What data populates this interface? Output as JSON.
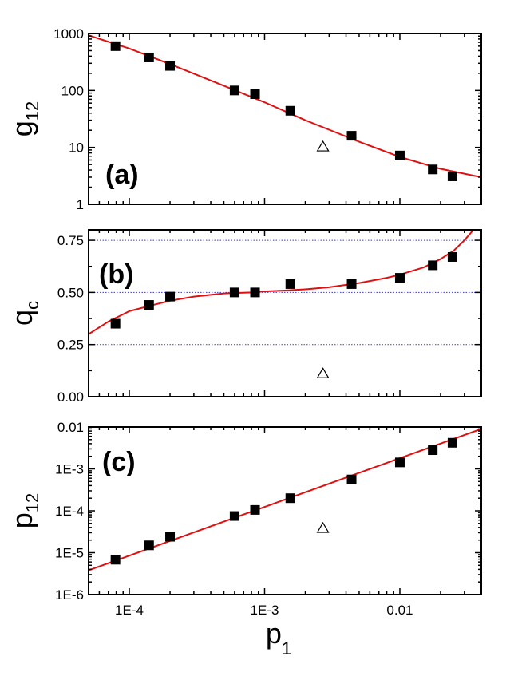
{
  "colors": {
    "fit": "#e01010",
    "reference": "#3a3acc",
    "marker": "#000000"
  },
  "chart_data": [
    {
      "type": "scatter",
      "panel_label": "(a)",
      "ylabel_main": "g",
      "ylabel_sub": "12",
      "xscale": "log",
      "yscale": "log",
      "xlim": [
        5e-05,
        0.04
      ],
      "ylim": [
        1,
        1000
      ],
      "x_ticks": [
        0.0001,
        0.001,
        0.01
      ],
      "y_ticks": [
        1,
        10,
        100,
        1000
      ],
      "y_tick_labels": [
        "1",
        "10",
        "100",
        "1000"
      ],
      "series": [
        {
          "marker": "filled-square",
          "x": [
            7.9e-05,
            0.00014,
            0.0002,
            0.0006,
            0.00085,
            0.00155,
            0.0044,
            0.01,
            0.0175,
            0.0245
          ],
          "y": [
            600,
            380,
            270,
            100,
            86,
            44,
            16,
            7.2,
            4.1,
            3.1
          ]
        },
        {
          "marker": "open-triangle",
          "x": [
            0.0027
          ],
          "y": [
            10.2
          ]
        }
      ],
      "fit": {
        "x": [
          5e-05,
          0.0001,
          0.0002,
          0.0005,
          0.001,
          0.002,
          0.005,
          0.01,
          0.02,
          0.04
        ],
        "y": [
          930,
          545,
          290,
          121,
          62,
          30,
          12.6,
          6.8,
          4.2,
          3.0
        ]
      }
    },
    {
      "type": "scatter",
      "panel_label": "(b)",
      "ylabel_main": "q",
      "ylabel_sub": "c",
      "xscale": "log",
      "yscale": "linear",
      "xlim": [
        5e-05,
        0.04
      ],
      "ylim": [
        0,
        0.8
      ],
      "x_ticks": [
        0.0001,
        0.001,
        0.01
      ],
      "y_ticks": [
        0,
        0.25,
        0.5,
        0.75
      ],
      "y_tick_labels": [
        "0.00",
        "0.25",
        "0.50",
        "0.75"
      ],
      "reference_lines": [
        0.25,
        0.5,
        0.75
      ],
      "series": [
        {
          "marker": "filled-square",
          "x": [
            7.9e-05,
            0.00014,
            0.0002,
            0.0006,
            0.00085,
            0.00155,
            0.0044,
            0.01,
            0.0175,
            0.0245
          ],
          "y": [
            0.35,
            0.44,
            0.48,
            0.5,
            0.5,
            0.54,
            0.54,
            0.57,
            0.63,
            0.67
          ]
        },
        {
          "marker": "open-triangle",
          "x": [
            0.0027
          ],
          "y": [
            0.11
          ]
        }
      ],
      "fit": {
        "x": [
          5e-05,
          7e-05,
          0.0001,
          0.00015,
          0.0002,
          0.0003,
          0.0005,
          0.0008,
          0.001,
          0.0015,
          0.002,
          0.003,
          0.005,
          0.008,
          0.01,
          0.015,
          0.02,
          0.025,
          0.03,
          0.035
        ],
        "y": [
          0.3,
          0.36,
          0.41,
          0.44,
          0.46,
          0.48,
          0.495,
          0.5,
          0.505,
          0.51,
          0.515,
          0.525,
          0.545,
          0.57,
          0.585,
          0.62,
          0.66,
          0.7,
          0.75,
          0.8
        ]
      }
    },
    {
      "type": "scatter",
      "panel_label": "(c)",
      "ylabel_main": "p",
      "ylabel_sub": "12",
      "xlabel_main": "p",
      "xlabel_sub": "1",
      "xscale": "log",
      "yscale": "log",
      "xlim": [
        5e-05,
        0.04
      ],
      "ylim": [
        1e-06,
        0.01
      ],
      "x_ticks": [
        0.0001,
        0.001,
        0.01
      ],
      "x_tick_labels": [
        "1E-4",
        "1E-3",
        "0.01"
      ],
      "y_ticks": [
        1e-06,
        1e-05,
        0.0001,
        0.001,
        0.01
      ],
      "y_tick_labels": [
        "1E-6",
        "1E-5",
        "1E-4",
        "1E-3",
        "0.01"
      ],
      "series": [
        {
          "marker": "filled-square",
          "x": [
            7.9e-05,
            0.00014,
            0.0002,
            0.0006,
            0.00085,
            0.00155,
            0.0044,
            0.01,
            0.0175,
            0.0245
          ],
          "y": [
            6.8e-06,
            1.5e-05,
            2.4e-05,
            7.5e-05,
            0.000105,
            0.0002,
            0.00056,
            0.00143,
            0.0028,
            0.0042
          ]
        },
        {
          "marker": "open-triangle",
          "x": [
            0.0027
          ],
          "y": [
            3.8e-05
          ]
        }
      ],
      "fit": {
        "x": [
          5e-05,
          0.04
        ],
        "y": [
          3.8e-06,
          0.009
        ]
      }
    }
  ]
}
